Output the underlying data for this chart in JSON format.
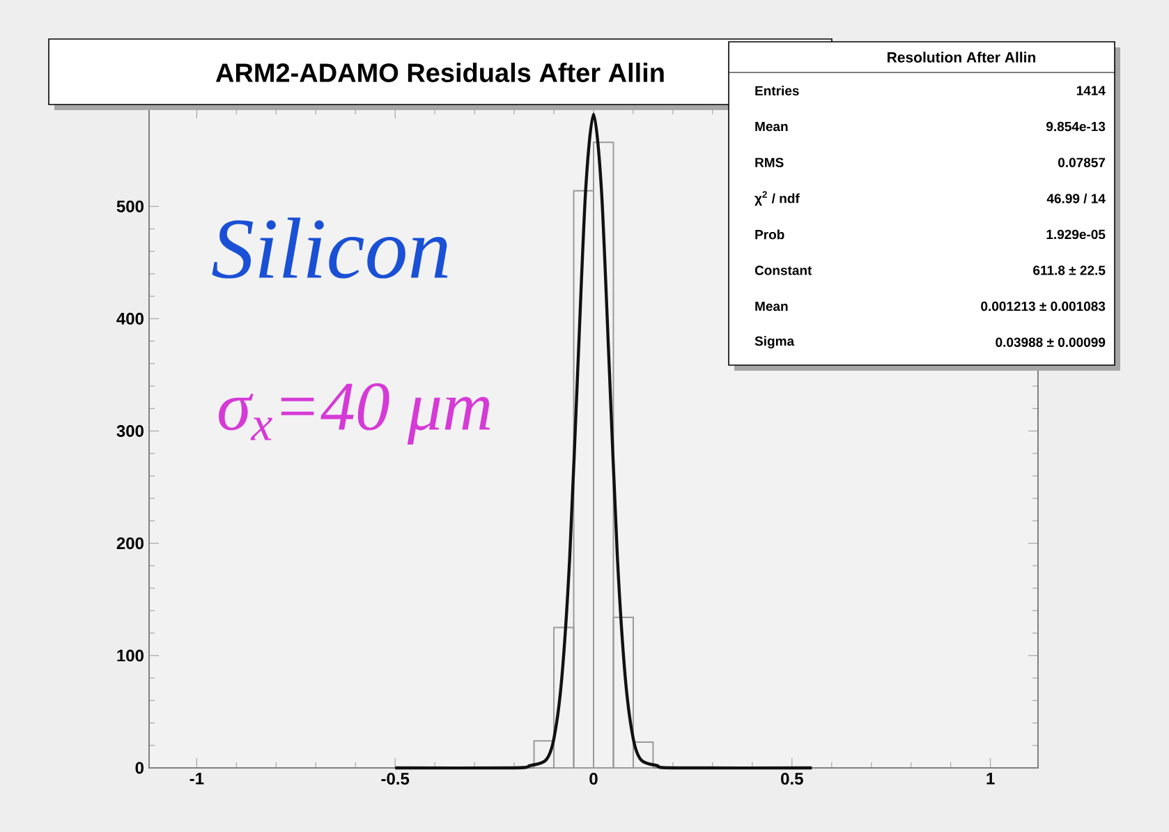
{
  "chart_data": {
    "type": "histogram",
    "title": "ARM2-ADAMO Residuals After Allin",
    "color": "#9a9a9a",
    "bins": [
      -0.15,
      -0.1,
      -0.05,
      0,
      0.05,
      0.1,
      0.15
    ],
    "values": [
      24,
      125,
      514,
      557,
      134,
      23
    ],
    "series": [
      {
        "type": "line",
        "color": "#111111",
        "x": [
          -0.5,
          -0.2,
          -0.16,
          -0.12,
          -0.1,
          -0.08,
          -0.06,
          -0.04,
          -0.02,
          0,
          0.02,
          0.04,
          0.06,
          0.08,
          0.1,
          0.12,
          0.16,
          0.2,
          0.55
        ],
        "values": [
          0,
          0,
          2,
          7,
          26,
          80,
          188,
          353,
          514,
          582,
          514,
          353,
          188,
          80,
          26,
          7,
          2,
          0,
          0
        ]
      }
    ],
    "xlim": [
      -1.12,
      1.12
    ],
    "ylim": [
      0,
      587
    ],
    "xticks": [
      -1,
      -0.5,
      0,
      0.5,
      1
    ],
    "yticks": [
      0,
      100,
      200,
      300,
      400,
      500
    ],
    "grid": false,
    "annotations": [
      "Silicon",
      "σ$_{x}$=40 μm",
      "Resolution After Allin",
      "Entries",
      "1414",
      "Mean",
      "9.854e-13",
      "RMS",
      "0.07857",
      "χ$^{2}$ / ndf",
      "46.99 / 14",
      "Prob",
      "1.929e-05",
      "Constant",
      "611.8 ± 22.5",
      "Mean",
      "0.001213 ± 0.001083",
      "Sigma",
      "0.03988 ± 0.00099"
    ]
  }
}
